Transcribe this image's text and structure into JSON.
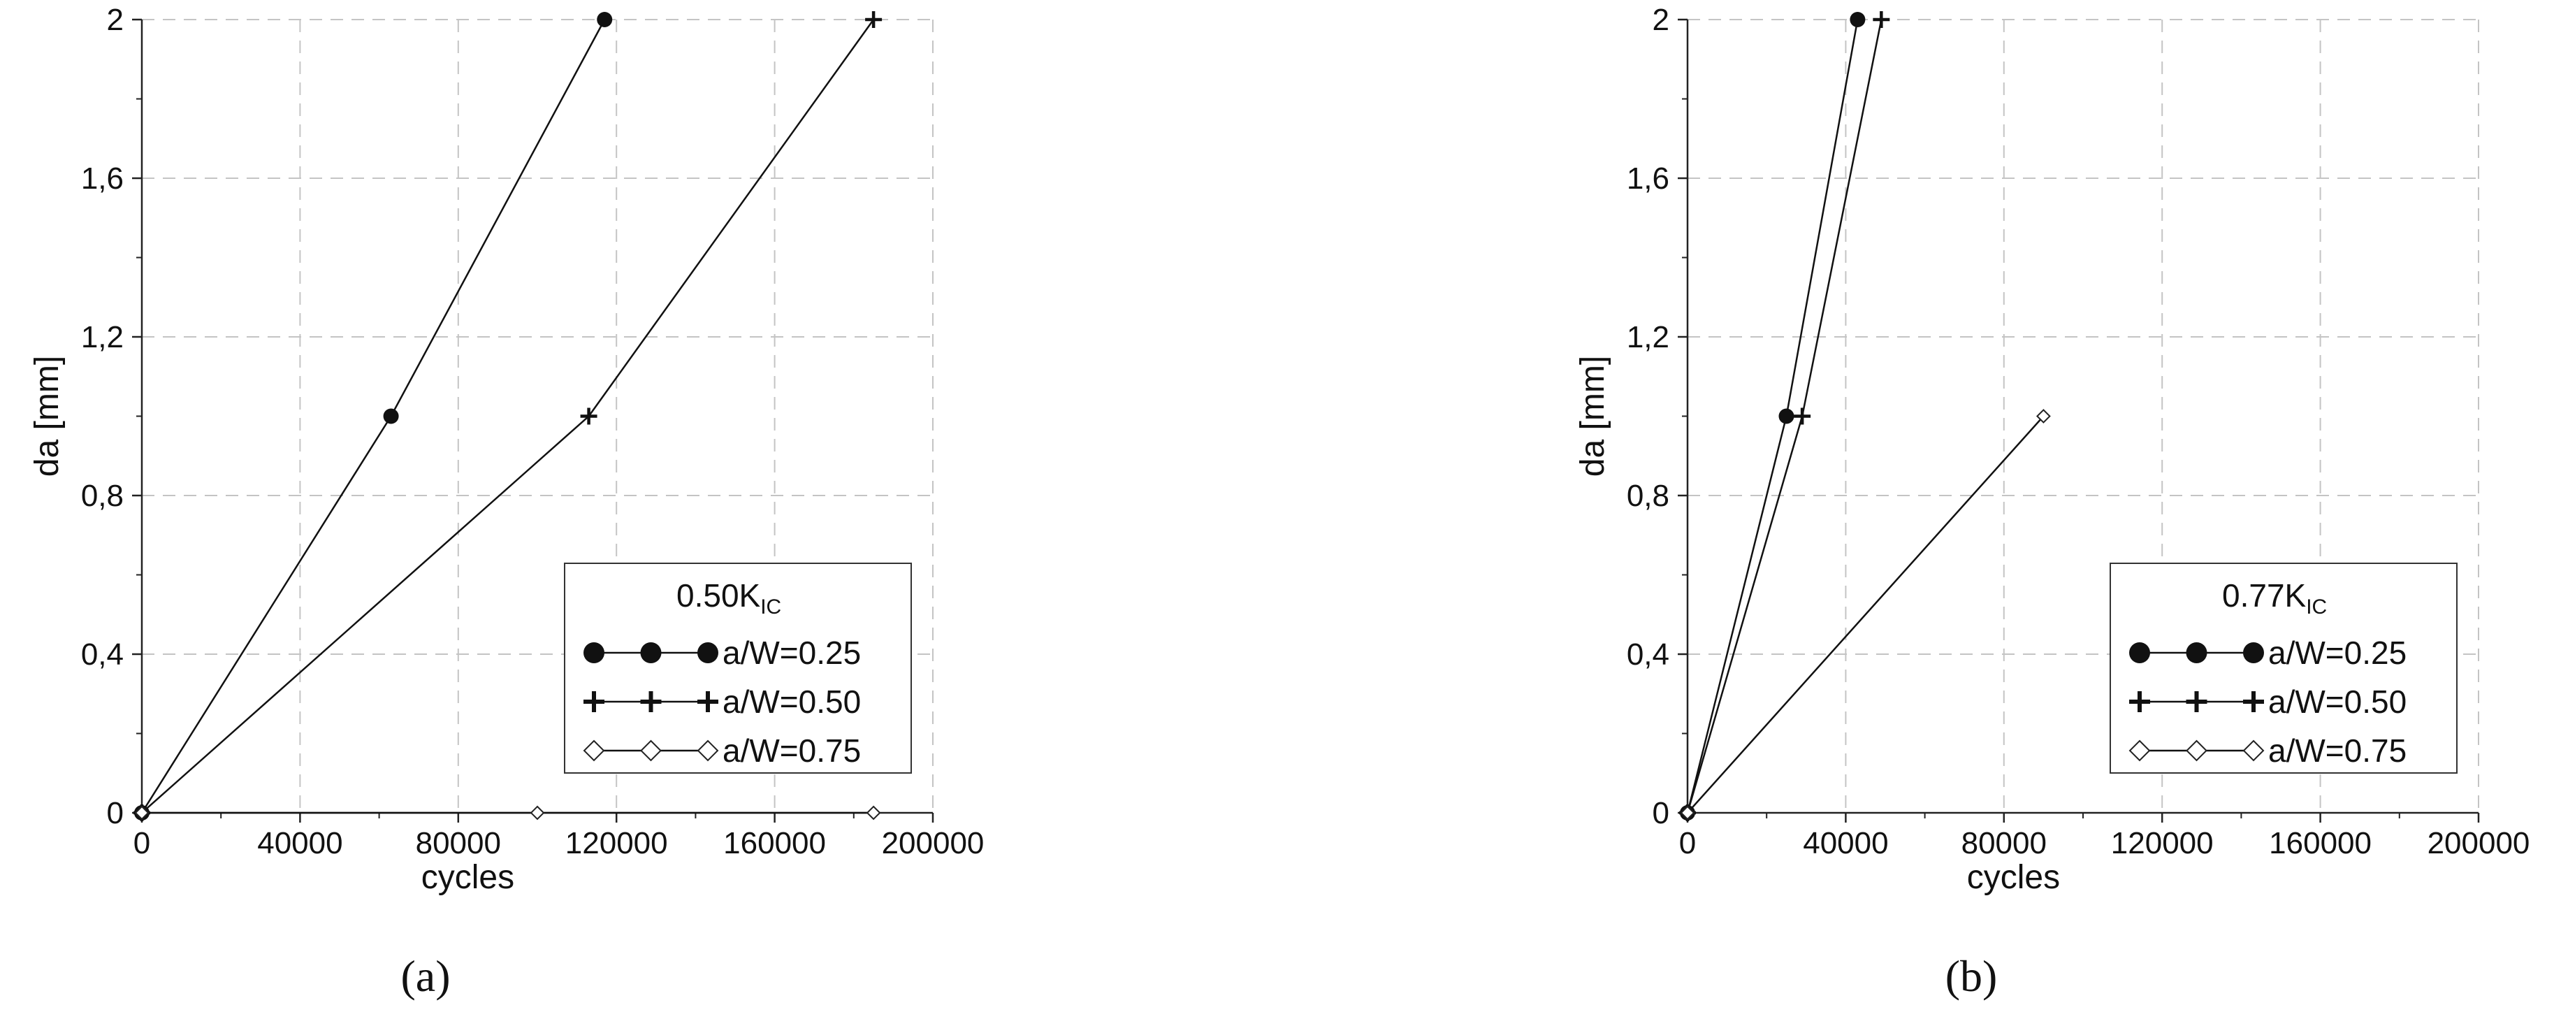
{
  "chart_data": [
    {
      "type": "line",
      "panel_label": "(a)",
      "xlabel": "cycles",
      "ylabel": "da [mm]",
      "xlim": [
        0,
        200000
      ],
      "ylim": [
        0,
        2
      ],
      "xticks": [
        "0",
        "40000",
        "80000",
        "120000",
        "160000",
        "200000"
      ],
      "yticks": [
        "0",
        "0,4",
        "0,8",
        "1,2",
        "1,6",
        "2"
      ],
      "grid": true,
      "legend": {
        "position": "bottom-right",
        "title_main": "0.50K",
        "title_sub": "IC"
      },
      "series": [
        {
          "name": "a/W=0.25",
          "marker": "filled-circle",
          "x": [
            0,
            63000,
            117000
          ],
          "y": [
            0,
            1,
            2
          ]
        },
        {
          "name": "a/W=0.50",
          "marker": "plus",
          "x": [
            0,
            113000,
            185000
          ],
          "y": [
            0,
            1,
            2
          ]
        },
        {
          "name": "a/W=0.75",
          "marker": "open-diamond",
          "x": [
            0,
            100000,
            185000
          ],
          "y": [
            0,
            0,
            0
          ]
        }
      ]
    },
    {
      "type": "line",
      "panel_label": "(b)",
      "xlabel": "cycles",
      "ylabel": "da [mm]",
      "xlim": [
        0,
        200000
      ],
      "ylim": [
        0,
        2
      ],
      "xticks": [
        "0",
        "40000",
        "80000",
        "120000",
        "160000",
        "200000"
      ],
      "yticks": [
        "0",
        "0,4",
        "0,8",
        "1,2",
        "1,6",
        "2"
      ],
      "grid": true,
      "legend": {
        "position": "bottom-right",
        "title_main": "0.77K",
        "title_sub": "IC"
      },
      "series": [
        {
          "name": "a/W=0.25",
          "marker": "filled-circle",
          "x": [
            0,
            25000,
            43000
          ],
          "y": [
            0,
            1,
            2
          ]
        },
        {
          "name": "a/W=0.50",
          "marker": "plus",
          "x": [
            0,
            29000,
            49000
          ],
          "y": [
            0,
            1,
            2
          ]
        },
        {
          "name": "a/W=0.75",
          "marker": "open-diamond",
          "x": [
            0,
            90000
          ],
          "y": [
            0,
            1
          ]
        }
      ]
    }
  ]
}
